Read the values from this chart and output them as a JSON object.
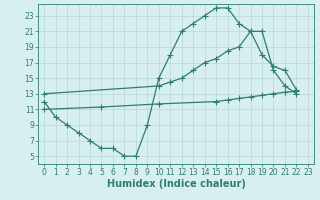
{
  "line1_x": [
    0,
    1,
    2,
    3,
    4,
    5,
    6,
    7,
    8,
    9,
    10,
    11,
    12,
    13,
    14,
    15,
    16,
    17,
    18,
    19,
    20,
    21,
    22
  ],
  "line1_y": [
    12,
    10,
    9,
    8,
    7,
    6,
    6,
    5,
    5,
    9,
    15,
    18,
    21,
    22,
    23,
    24,
    24,
    22,
    21,
    21,
    16,
    14,
    13
  ],
  "line2_x": [
    0,
    10,
    11,
    12,
    13,
    14,
    15,
    16,
    17,
    18,
    19,
    20,
    21,
    22
  ],
  "line2_y": [
    13,
    14,
    14.5,
    15.0,
    16.0,
    17.0,
    17.5,
    18.5,
    19.0,
    21.0,
    18.0,
    16.5,
    16.0,
    13.5
  ],
  "line3_x": [
    0,
    5,
    10,
    15,
    16,
    17,
    18,
    19,
    20,
    21,
    22
  ],
  "line3_y": [
    11,
    11.3,
    11.7,
    12.0,
    12.2,
    12.4,
    12.6,
    12.8,
    13.0,
    13.2,
    13.3
  ],
  "color": "#2e7d6e",
  "bg_color": "#d8efef",
  "grid_color": "#b8d8d8",
  "xlabel": "Humidex (Indice chaleur)",
  "xlim": [
    -0.5,
    23.5
  ],
  "ylim": [
    4,
    24.5
  ],
  "xticks": [
    0,
    1,
    2,
    3,
    4,
    5,
    6,
    7,
    8,
    9,
    10,
    11,
    12,
    13,
    14,
    15,
    16,
    17,
    18,
    19,
    20,
    21,
    22,
    23
  ],
  "yticks": [
    5,
    7,
    9,
    11,
    13,
    15,
    17,
    19,
    21,
    23
  ],
  "tick_fontsize": 5.5,
  "xlabel_fontsize": 7.0
}
